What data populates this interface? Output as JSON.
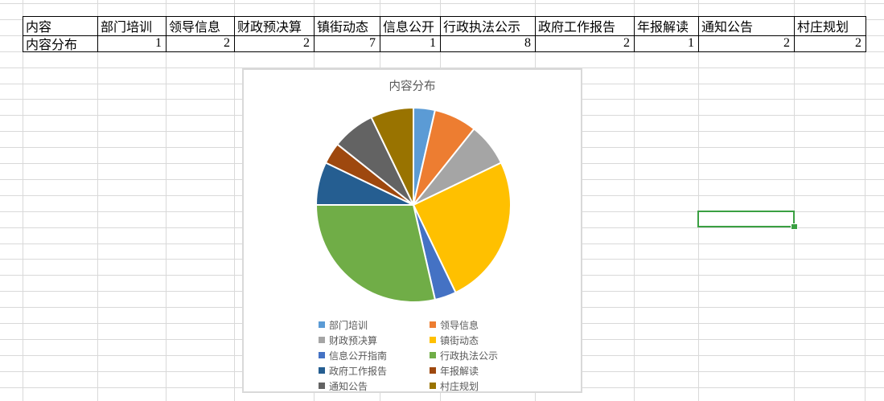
{
  "sheet": {
    "table": {
      "corner_label": "内容",
      "row_label": "内容分布",
      "columns": [
        "部门培训",
        "领导信息",
        "财政预决算",
        "镇街动态",
        "信息公开",
        "行政执法公示",
        "政府工作报告",
        "年报解读",
        "通知公告",
        "村庄规划"
      ],
      "values": [
        "1",
        "2",
        "2",
        "7",
        "1",
        "8",
        "2",
        "1",
        "2",
        "2"
      ]
    },
    "selection": {
      "border_color": "#3aa042"
    }
  },
  "chart_data": {
    "type": "pie",
    "title": "内容分布",
    "categories": [
      "部门培训",
      "领导信息",
      "财政预决算",
      "镇街动态",
      "信息公开指南",
      "行政执法公示",
      "政府工作报告",
      "年报解读",
      "通知公告",
      "村庄规划"
    ],
    "values": [
      1,
      2,
      2,
      7,
      1,
      8,
      2,
      1,
      2,
      2
    ],
    "colors": [
      "#5B9BD5",
      "#ED7D31",
      "#A5A5A5",
      "#FFC000",
      "#4472C4",
      "#70AD47",
      "#255E91",
      "#9E480E",
      "#636363",
      "#997300"
    ],
    "title_color": "#595959",
    "legend_position": "bottom",
    "legend_columns": 2,
    "start_angle_deg": 0,
    "direction": "clockwise",
    "slice_separator_color": "#FFFFFF"
  }
}
